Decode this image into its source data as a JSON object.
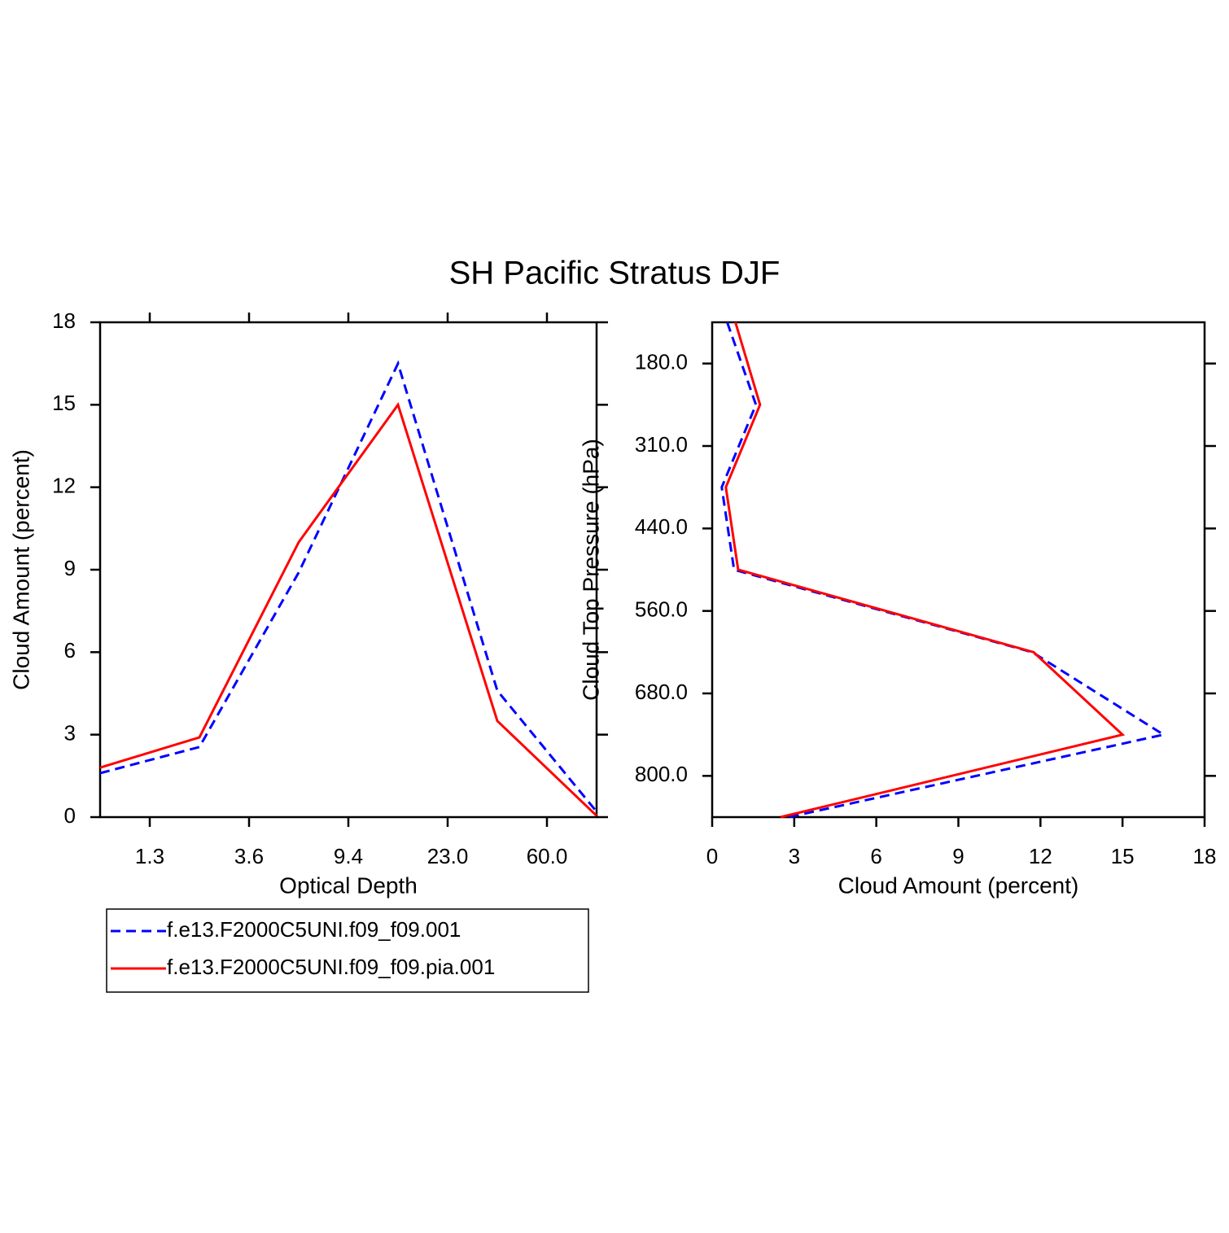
{
  "title": "SH Pacific Stratus DJF",
  "chart_data": [
    {
      "type": "line",
      "orientation": "vertical",
      "xlabel": "Optical Depth",
      "ylabel": "Cloud Amount (percent)",
      "x": [
        0,
        1,
        2,
        3,
        4,
        5
      ],
      "xlim": [
        0,
        5
      ],
      "xticks": [
        {
          "value": 0.5,
          "label": "1.3"
        },
        {
          "value": 1.5,
          "label": "3.6"
        },
        {
          "value": 2.5,
          "label": "9.4"
        },
        {
          "value": 3.5,
          "label": "23.0"
        },
        {
          "value": 4.5,
          "label": "60.0"
        }
      ],
      "ylim": [
        0,
        18
      ],
      "yticks": [
        0,
        3,
        6,
        9,
        12,
        15,
        18
      ],
      "series": [
        {
          "name": "f.e13.F2000C5UNI.f09_f09.001",
          "color": "#0000ff",
          "dash": "dashed",
          "values": [
            1.6,
            2.55,
            8.9,
            16.5,
            4.6,
            0.2
          ]
        },
        {
          "name": "f.e13.F2000C5UNI.f09_f09.pia.001",
          "color": "#ff0000",
          "dash": "solid",
          "values": [
            1.8,
            2.9,
            10.0,
            15.0,
            3.5,
            0.05
          ]
        }
      ]
    },
    {
      "type": "line",
      "orientation": "horizontal",
      "xlabel": "Cloud Amount (percent)",
      "ylabel": "Cloud Top Pressure (hPa)",
      "y": [
        0,
        1,
        2,
        3,
        4,
        5,
        6
      ],
      "ylim": [
        6,
        0
      ],
      "yticks": [
        {
          "value": 0.5,
          "label": "180.0"
        },
        {
          "value": 1.5,
          "label": "310.0"
        },
        {
          "value": 2.5,
          "label": "440.0"
        },
        {
          "value": 3.5,
          "label": "560.0"
        },
        {
          "value": 4.5,
          "label": "680.0"
        },
        {
          "value": 5.5,
          "label": "800.0"
        }
      ],
      "xlim": [
        0,
        18
      ],
      "xticks": [
        0,
        3,
        6,
        9,
        12,
        15,
        18
      ],
      "series": [
        {
          "color": "#0000ff",
          "dash": "dashed",
          "values": [
            0.55,
            1.6,
            0.35,
            0.8,
            11.7,
            16.5,
            2.8
          ]
        },
        {
          "color": "#ff0000",
          "dash": "solid",
          "values": [
            0.85,
            1.75,
            0.5,
            0.95,
            11.75,
            15.0,
            2.5
          ]
        }
      ]
    }
  ]
}
